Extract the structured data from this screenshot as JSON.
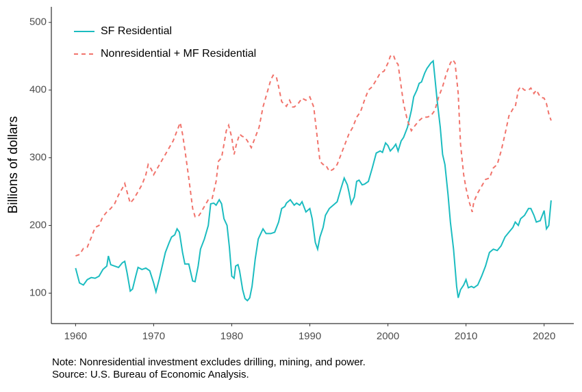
{
  "chart_data": {
    "type": "line",
    "ylabel": "Billions of dollars",
    "notes": [
      "Note: Nonresidential investment excludes drilling, mining, and power.",
      "Source: U.S. Bureau of Economic Analysis."
    ],
    "xlim": [
      1956.9,
      2023.8
    ],
    "xticks": [
      1960,
      1970,
      1980,
      1990,
      2000,
      2010,
      2020
    ],
    "ylim": [
      55,
      523
    ],
    "yticks": [
      100,
      200,
      300,
      400,
      500
    ],
    "grid": false,
    "legend": "top-left",
    "series": [
      {
        "name": "SF Residential",
        "color": "#1bbcc0",
        "dash": "solid",
        "x": [
          1960,
          1960.5,
          1961,
          1961.5,
          1962,
          1962.5,
          1963,
          1963.5,
          1964,
          1964.2,
          1964.5,
          1965,
          1965.5,
          1966,
          1966.3,
          1966.6,
          1967,
          1967.3,
          1967.7,
          1968,
          1968.5,
          1969,
          1969.5,
          1970,
          1970.3,
          1970.7,
          1971,
          1971.5,
          1972,
          1972.3,
          1972.7,
          1973,
          1973.3,
          1973.7,
          1974,
          1974.5,
          1975,
          1975.3,
          1975.7,
          1976,
          1976.5,
          1977,
          1977.3,
          1977.7,
          1978,
          1978.4,
          1978.7,
          1979,
          1979.4,
          1979.7,
          1980,
          1980.3,
          1980.5,
          1980.8,
          1981,
          1981.4,
          1981.7,
          1982,
          1982.3,
          1982.6,
          1983,
          1983.4,
          1983.8,
          1984,
          1984.4,
          1985,
          1985.5,
          1986,
          1986.4,
          1986.8,
          1987,
          1987.5,
          1988,
          1988.3,
          1988.7,
          1989,
          1989.5,
          1990,
          1990.3,
          1990.7,
          1991,
          1991.3,
          1991.7,
          1992,
          1992.5,
          1993,
          1993.5,
          1994,
          1994.4,
          1994.8,
          1995,
          1995.3,
          1995.7,
          1996,
          1996.3,
          1996.7,
          1997,
          1997.5,
          1998,
          1998.5,
          1999,
          1999.3,
          1999.7,
          2000,
          2000.3,
          2000.7,
          2001,
          2001.3,
          2001.7,
          2002,
          2002.5,
          2003,
          2003.3,
          2003.7,
          2004,
          2004.3,
          2004.7,
          2005,
          2005.5,
          2005.8,
          2006,
          2006.3,
          2006.7,
          2007,
          2007.3,
          2007.7,
          2008,
          2008.4,
          2008.8,
          2009,
          2009.3,
          2009.7,
          2010,
          2010.3,
          2010.7,
          2011,
          2011.5,
          2012,
          2012.5,
          2013,
          2013.5,
          2014,
          2014.5,
          2015,
          2015.5,
          2016,
          2016.3,
          2016.7,
          2017,
          2017.5,
          2018,
          2018.3,
          2018.7,
          2019,
          2019.5,
          2020,
          2020.3,
          2020.6,
          2020.9
        ],
        "values": [
          137,
          115,
          112,
          120,
          123,
          122,
          125,
          135,
          140,
          155,
          142,
          140,
          138,
          145,
          147,
          130,
          103,
          106,
          125,
          138,
          135,
          137,
          133,
          115,
          102,
          120,
          135,
          160,
          175,
          183,
          186,
          195,
          190,
          160,
          143,
          143,
          118,
          117,
          140,
          165,
          180,
          200,
          232,
          233,
          230,
          238,
          232,
          210,
          200,
          168,
          125,
          122,
          140,
          142,
          133,
          105,
          92,
          89,
          93,
          110,
          150,
          180,
          190,
          195,
          188,
          188,
          190,
          205,
          225,
          228,
          233,
          238,
          230,
          233,
          230,
          235,
          220,
          225,
          210,
          175,
          165,
          183,
          197,
          215,
          225,
          230,
          235,
          255,
          270,
          260,
          250,
          232,
          242,
          265,
          267,
          260,
          261,
          265,
          285,
          307,
          310,
          308,
          322,
          318,
          310,
          315,
          320,
          310,
          325,
          330,
          345,
          370,
          390,
          400,
          410,
          412,
          425,
          432,
          440,
          443,
          420,
          385,
          345,
          305,
          290,
          245,
          205,
          165,
          110,
          93,
          105,
          112,
          120,
          108,
          110,
          108,
          112,
          125,
          140,
          160,
          165,
          163,
          170,
          183,
          190,
          197,
          205,
          200,
          210,
          215,
          225,
          225,
          215,
          205,
          207,
          222,
          195,
          200,
          237
        ]
      },
      {
        "name": "Nonresidential + MF Residential",
        "color": "#f1736b",
        "dash": "dashed",
        "x": [
          1960,
          1960.5,
          1961,
          1961.5,
          1962,
          1962.5,
          1963,
          1963.5,
          1964,
          1964.5,
          1965,
          1965.5,
          1966,
          1966.3,
          1966.7,
          1967,
          1967.5,
          1968,
          1968.5,
          1969,
          1969.3,
          1969.7,
          1970,
          1970.5,
          1971,
          1971.5,
          1972,
          1972.5,
          1973,
          1973.4,
          1973.7,
          1974,
          1974.5,
          1975,
          1975.3,
          1975.7,
          1976,
          1976.5,
          1977,
          1977.5,
          1978,
          1978.3,
          1978.7,
          1979,
          1979.3,
          1979.6,
          1980,
          1980.3,
          1980.6,
          1981,
          1981.3,
          1981.7,
          1982,
          1982.5,
          1983,
          1983.5,
          1984,
          1984.5,
          1985,
          1985.3,
          1985.7,
          1986,
          1986.4,
          1986.8,
          1987,
          1987.4,
          1987.8,
          1988,
          1988.5,
          1989,
          1989.5,
          1990,
          1990.5,
          1991,
          1991.3,
          1991.7,
          1992,
          1992.5,
          1993,
          1993.5,
          1994,
          1994.5,
          1995,
          1995.5,
          1996,
          1996.5,
          1997,
          1997.5,
          1998,
          1998.5,
          1999,
          1999.5,
          2000,
          2000.3,
          2000.7,
          2001,
          2001.3,
          2001.7,
          2002,
          2002.5,
          2003,
          2003.5,
          2004,
          2004.5,
          2005,
          2005.5,
          2006,
          2006.5,
          2007,
          2007.5,
          2008,
          2008.3,
          2008.6,
          2009,
          2009.3,
          2009.7,
          2010,
          2010.4,
          2010.8,
          2011,
          2011.5,
          2012,
          2012.5,
          2013,
          2013.5,
          2014,
          2014.5,
          2015,
          2015.5,
          2016,
          2016.3,
          2016.7,
          2017,
          2017.5,
          2018,
          2018.3,
          2018.7,
          2019,
          2019.5,
          2020,
          2020.3,
          2020.6,
          2020.9
        ],
        "values": [
          155,
          157,
          166,
          168,
          182,
          197,
          200,
          213,
          220,
          225,
          232,
          245,
          255,
          262,
          245,
          233,
          240,
          250,
          260,
          275,
          290,
          283,
          275,
          285,
          295,
          305,
          315,
          325,
          340,
          352,
          335,
          312,
          270,
          225,
          213,
          213,
          218,
          228,
          238,
          240,
          265,
          295,
          300,
          320,
          340,
          348,
          330,
          305,
          320,
          335,
          332,
          330,
          325,
          315,
          330,
          345,
          375,
          395,
          415,
          422,
          420,
          405,
          383,
          378,
          376,
          385,
          375,
          375,
          380,
          388,
          385,
          390,
          375,
          325,
          295,
          290,
          290,
          280,
          283,
          290,
          305,
          320,
          335,
          345,
          360,
          368,
          385,
          400,
          405,
          415,
          425,
          428,
          440,
          450,
          452,
          442,
          438,
          405,
          380,
          355,
          340,
          348,
          355,
          360,
          360,
          362,
          370,
          390,
          405,
          425,
          440,
          445,
          440,
          395,
          320,
          275,
          255,
          235,
          220,
          235,
          248,
          258,
          268,
          270,
          285,
          290,
          310,
          335,
          362,
          372,
          375,
          400,
          405,
          400,
          400,
          403,
          395,
          400,
          390,
          388,
          380,
          365,
          355
        ]
      }
    ]
  }
}
